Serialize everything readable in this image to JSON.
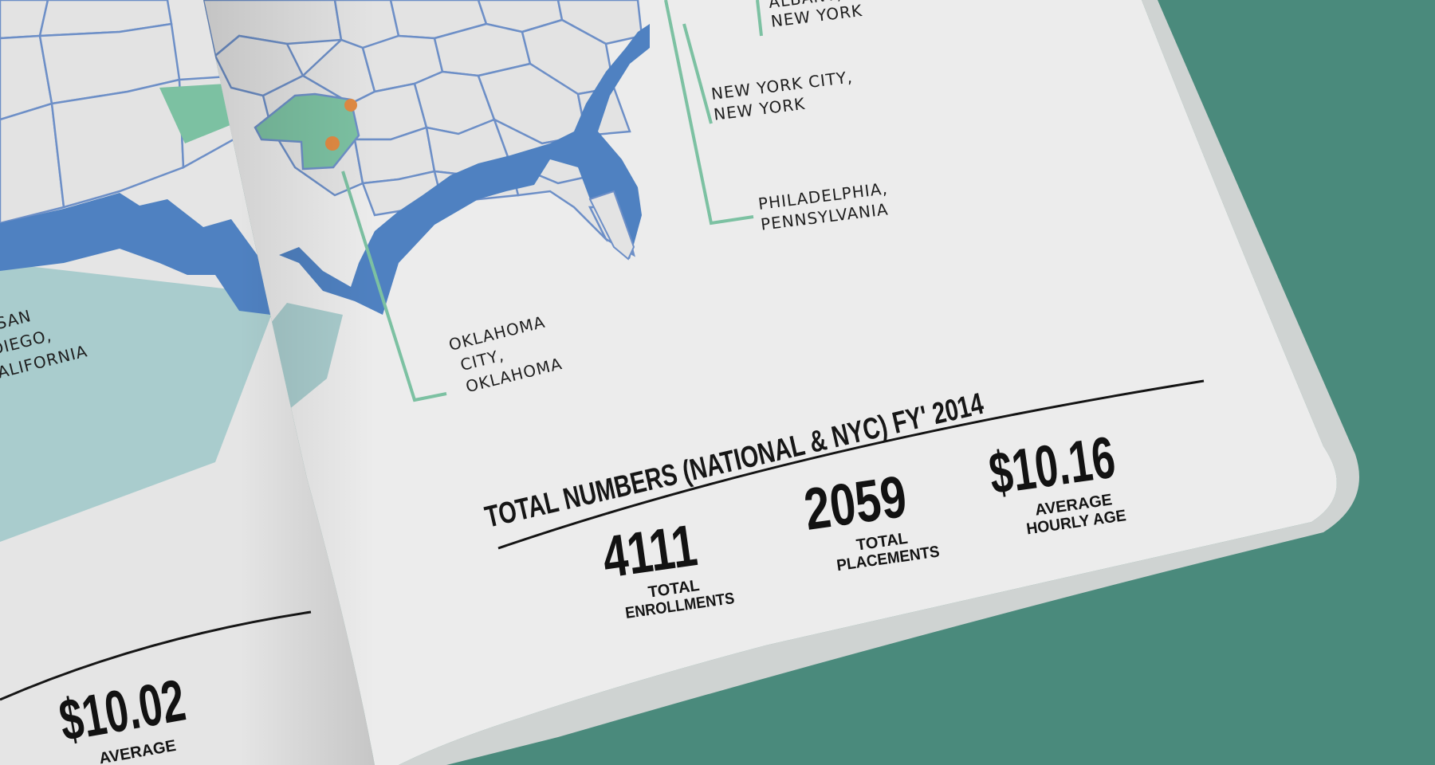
{
  "colors": {
    "background": "#4a8a7c",
    "page": "#ececec",
    "land": "#e3e3e3",
    "state_border": "#6d8fc7",
    "water": "#4f81c1",
    "highlight_state": "#7cc1a2",
    "accent_line": "#7cc1a2",
    "pacific_fill": "#a9cccd",
    "marker": "#e08a43"
  },
  "map": {
    "labels": [
      {
        "lines": [
          "ALBANY,",
          "NEW YORK"
        ]
      },
      {
        "lines": [
          "NEW YORK CITY,",
          "NEW YORK"
        ]
      },
      {
        "lines": [
          "PHILADELPHIA,",
          "PENNSYLVANIA"
        ]
      },
      {
        "lines": [
          "OKLAHOMA",
          "CITY,",
          "OKLAHOMA"
        ]
      },
      {
        "lines": [
          "SAN",
          "DIEGO,",
          "CALIFORNIA"
        ]
      }
    ]
  },
  "totals": {
    "title": "TOTAL NUMBERS (NATIONAL & NYC) FY' 2014",
    "stats": [
      {
        "value": "4111",
        "label_line1": "TOTAL",
        "label_line2": "ENROLLMENTS"
      },
      {
        "value": "2059",
        "label_line1": "TOTAL",
        "label_line2": "PLACEMENTS"
      },
      {
        "value": "$10.16",
        "label_line1": "AVERAGE",
        "label_line2": "HOURLY AGE"
      }
    ]
  },
  "left_page": {
    "stat_value": "$10.02",
    "stat_label": "AVERAGE"
  }
}
